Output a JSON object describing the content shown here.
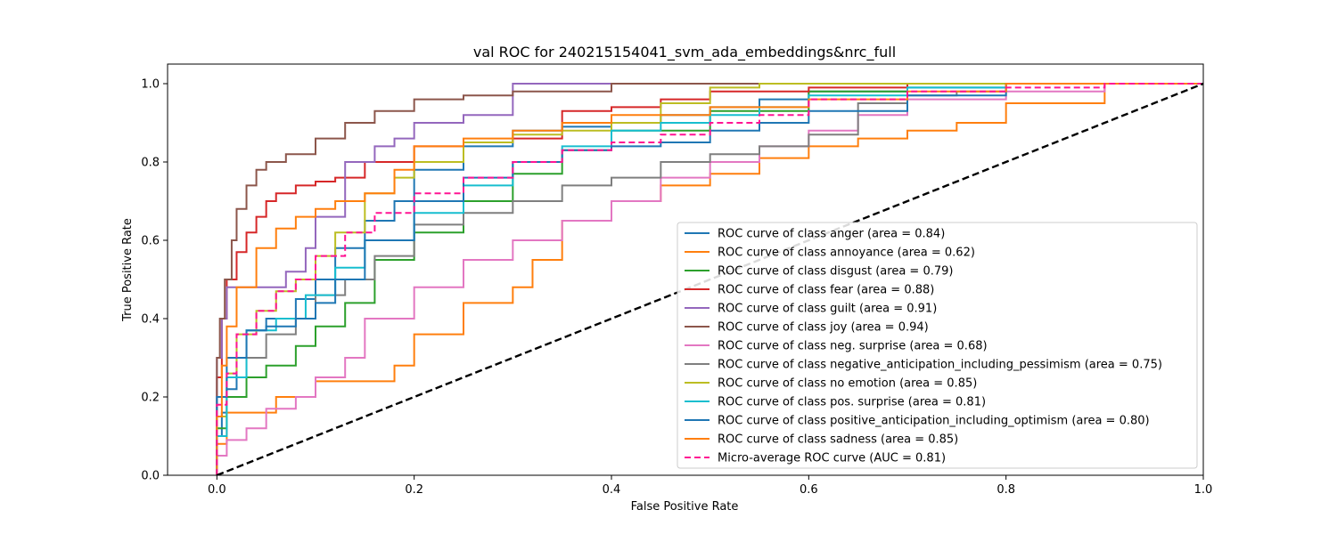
{
  "chart_data": {
    "type": "line",
    "title": "val ROC for 240215154041_svm_ada_embeddings&nrc_full",
    "xlabel": "False Positive Rate",
    "ylabel": "True Positive Rate",
    "xlim": [
      -0.05,
      1.0
    ],
    "ylim": [
      0.0,
      1.05
    ],
    "x_ticks": [
      0.0,
      0.2,
      0.4,
      0.6,
      0.8,
      1.0
    ],
    "x_tick_labels": [
      "0.0",
      "0.2",
      "0.4",
      "0.6",
      "0.8",
      "1.0"
    ],
    "y_ticks": [
      0.0,
      0.2,
      0.4,
      0.6,
      0.8,
      1.0
    ],
    "y_tick_labels": [
      "0.0",
      "0.2",
      "0.4",
      "0.6",
      "0.8",
      "1.0"
    ],
    "grid": false,
    "legend_position": "lower-right",
    "series": [
      {
        "name": "ROC curve of class anger (area = 0.84)",
        "color": "#1f77b4",
        "style": "solid",
        "x": [
          0,
          0.005,
          0.01,
          0.02,
          0.03,
          0.05,
          0.08,
          0.1,
          0.12,
          0.15,
          0.18,
          0.2,
          0.25,
          0.3,
          0.35,
          0.4,
          0.45,
          0.5,
          0.55,
          0.6,
          0.7,
          0.8,
          0.9,
          1.0
        ],
        "y": [
          0,
          0.1,
          0.16,
          0.22,
          0.3,
          0.37,
          0.4,
          0.45,
          0.5,
          0.58,
          0.65,
          0.7,
          0.78,
          0.84,
          0.88,
          0.89,
          0.9,
          0.92,
          0.94,
          0.96,
          0.98,
          0.99,
          1.0,
          1.0
        ]
      },
      {
        "name": "ROC curve of class annoyance (area = 0.62)",
        "color": "#ff7f0e",
        "style": "solid",
        "x": [
          0,
          0.01,
          0.03,
          0.06,
          0.1,
          0.15,
          0.18,
          0.2,
          0.25,
          0.3,
          0.32,
          0.35,
          0.4,
          0.45,
          0.5,
          0.55,
          0.6,
          0.65,
          0.7,
          0.75,
          0.8,
          0.9,
          1.0
        ],
        "y": [
          0,
          0.08,
          0.16,
          0.16,
          0.2,
          0.24,
          0.24,
          0.28,
          0.36,
          0.44,
          0.48,
          0.55,
          0.65,
          0.7,
          0.74,
          0.77,
          0.81,
          0.84,
          0.86,
          0.88,
          0.9,
          0.95,
          1.0
        ]
      },
      {
        "name": "ROC curve of class disgust (area = 0.79)",
        "color": "#2ca02c",
        "style": "solid",
        "x": [
          0,
          0.01,
          0.03,
          0.05,
          0.08,
          0.1,
          0.13,
          0.16,
          0.2,
          0.25,
          0.3,
          0.35,
          0.4,
          0.5,
          0.6,
          0.7,
          0.8,
          1.0
        ],
        "y": [
          0,
          0.12,
          0.2,
          0.25,
          0.28,
          0.33,
          0.38,
          0.44,
          0.55,
          0.62,
          0.7,
          0.77,
          0.83,
          0.88,
          0.93,
          0.98,
          1.0,
          1.0
        ]
      },
      {
        "name": "ROC curve of class fear (area = 0.88)",
        "color": "#d62728",
        "style": "solid",
        "x": [
          0,
          0.005,
          0.01,
          0.02,
          0.03,
          0.04,
          0.05,
          0.06,
          0.08,
          0.1,
          0.12,
          0.15,
          0.2,
          0.25,
          0.3,
          0.35,
          0.4,
          0.45,
          0.5,
          0.6,
          0.7,
          0.8,
          1.0
        ],
        "y": [
          0,
          0.25,
          0.4,
          0.5,
          0.57,
          0.62,
          0.66,
          0.7,
          0.72,
          0.74,
          0.75,
          0.76,
          0.8,
          0.84,
          0.85,
          0.86,
          0.93,
          0.94,
          0.96,
          0.98,
          0.99,
          1.0,
          1.0
        ]
      },
      {
        "name": "ROC curve of class guilt (area = 0.91)",
        "color": "#9467bd",
        "style": "solid",
        "x": [
          0,
          0.005,
          0.01,
          0.02,
          0.04,
          0.07,
          0.09,
          0.1,
          0.13,
          0.16,
          0.18,
          0.2,
          0.25,
          0.3,
          0.35,
          0.4,
          0.6,
          1.0
        ],
        "y": [
          0,
          0.3,
          0.4,
          0.48,
          0.48,
          0.48,
          0.52,
          0.58,
          0.66,
          0.8,
          0.84,
          0.86,
          0.9,
          0.92,
          1.0,
          1.0,
          1.0,
          1.0
        ]
      },
      {
        "name": "ROC curve of class joy (area = 0.94)",
        "color": "#8c564b",
        "style": "solid",
        "x": [
          0,
          0.003,
          0.008,
          0.015,
          0.02,
          0.03,
          0.04,
          0.05,
          0.07,
          0.1,
          0.13,
          0.16,
          0.2,
          0.25,
          0.3,
          0.4,
          0.5,
          0.6,
          1.0
        ],
        "y": [
          0,
          0.3,
          0.4,
          0.5,
          0.6,
          0.68,
          0.74,
          0.78,
          0.8,
          0.82,
          0.86,
          0.9,
          0.93,
          0.96,
          0.97,
          0.98,
          1.0,
          1.0,
          1.0
        ]
      },
      {
        "name": "ROC curve of class neg. surprise (area = 0.68)",
        "color": "#e377c2",
        "style": "solid",
        "x": [
          0,
          0.01,
          0.03,
          0.05,
          0.08,
          0.1,
          0.13,
          0.15,
          0.2,
          0.25,
          0.3,
          0.35,
          0.4,
          0.45,
          0.5,
          0.55,
          0.6,
          0.65,
          0.7,
          0.8,
          0.9,
          1.0
        ],
        "y": [
          0,
          0.05,
          0.09,
          0.12,
          0.17,
          0.2,
          0.25,
          0.3,
          0.4,
          0.48,
          0.55,
          0.6,
          0.65,
          0.7,
          0.76,
          0.8,
          0.84,
          0.88,
          0.92,
          0.96,
          0.98,
          1.0
        ]
      },
      {
        "name": "ROC curve of class negative_anticipation_including_pessimism (area = 0.75)",
        "color": "#7f7f7f",
        "style": "solid",
        "x": [
          0,
          0.01,
          0.03,
          0.05,
          0.08,
          0.1,
          0.13,
          0.16,
          0.2,
          0.25,
          0.3,
          0.35,
          0.4,
          0.45,
          0.5,
          0.55,
          0.6,
          0.65,
          0.7,
          0.75,
          0.8,
          0.9,
          1.0
        ],
        "y": [
          0,
          0.15,
          0.25,
          0.3,
          0.36,
          0.4,
          0.46,
          0.5,
          0.56,
          0.64,
          0.67,
          0.7,
          0.74,
          0.76,
          0.8,
          0.82,
          0.84,
          0.87,
          0.95,
          0.97,
          0.98,
          1.0,
          1.0
        ]
      },
      {
        "name": "ROC curve of class no emotion (area = 0.85)",
        "color": "#bcbd22",
        "style": "solid",
        "x": [
          0,
          0.01,
          0.02,
          0.04,
          0.06,
          0.08,
          0.1,
          0.12,
          0.15,
          0.18,
          0.2,
          0.25,
          0.3,
          0.35,
          0.4,
          0.45,
          0.5,
          0.55,
          0.6,
          0.7,
          0.8,
          1.0
        ],
        "y": [
          0,
          0.15,
          0.26,
          0.36,
          0.42,
          0.47,
          0.5,
          0.56,
          0.62,
          0.72,
          0.76,
          0.8,
          0.85,
          0.87,
          0.88,
          0.9,
          0.95,
          0.99,
          1.0,
          1.0,
          1.0,
          1.0
        ]
      },
      {
        "name": "ROC curve of class pos. surprise (area = 0.81)",
        "color": "#17becf",
        "style": "solid",
        "x": [
          0,
          0.01,
          0.03,
          0.06,
          0.09,
          0.12,
          0.15,
          0.2,
          0.25,
          0.3,
          0.35,
          0.4,
          0.45,
          0.5,
          0.55,
          0.6,
          0.7,
          0.8,
          1.0
        ],
        "y": [
          0,
          0.1,
          0.25,
          0.37,
          0.4,
          0.46,
          0.53,
          0.6,
          0.67,
          0.74,
          0.8,
          0.84,
          0.88,
          0.9,
          0.92,
          0.94,
          0.97,
          0.99,
          1.0
        ]
      },
      {
        "name": "ROC curve of class positive_anticipation_including_optimism (area = 0.80)",
        "color": "#1f77b4",
        "style": "solid",
        "x": [
          0,
          0.01,
          0.03,
          0.05,
          0.08,
          0.1,
          0.12,
          0.15,
          0.2,
          0.25,
          0.3,
          0.35,
          0.4,
          0.45,
          0.5,
          0.55,
          0.6,
          0.7,
          0.8,
          1.0
        ],
        "y": [
          0,
          0.2,
          0.3,
          0.37,
          0.38,
          0.4,
          0.44,
          0.5,
          0.6,
          0.7,
          0.76,
          0.8,
          0.83,
          0.84,
          0.85,
          0.88,
          0.9,
          0.93,
          0.97,
          1.0
        ]
      },
      {
        "name": "ROC curve of class sadness (area = 0.85)",
        "color": "#ff7f0e",
        "style": "solid",
        "x": [
          0,
          0.005,
          0.01,
          0.02,
          0.04,
          0.06,
          0.08,
          0.1,
          0.12,
          0.15,
          0.18,
          0.2,
          0.25,
          0.3,
          0.35,
          0.4,
          0.5,
          0.6,
          0.7,
          0.8,
          1.0
        ],
        "y": [
          0,
          0.15,
          0.28,
          0.38,
          0.48,
          0.58,
          0.63,
          0.66,
          0.68,
          0.7,
          0.72,
          0.78,
          0.84,
          0.86,
          0.88,
          0.9,
          0.92,
          0.94,
          0.96,
          0.98,
          1.0
        ]
      },
      {
        "name": "Micro-average ROC curve (AUC = 0.81)",
        "color": "#ff1493",
        "style": "dashed",
        "x": [
          0,
          0.01,
          0.02,
          0.04,
          0.06,
          0.08,
          0.1,
          0.13,
          0.16,
          0.2,
          0.25,
          0.3,
          0.35,
          0.4,
          0.45,
          0.5,
          0.55,
          0.6,
          0.7,
          0.8,
          0.9,
          1.0
        ],
        "y": [
          0,
          0.18,
          0.26,
          0.36,
          0.42,
          0.47,
          0.5,
          0.56,
          0.62,
          0.67,
          0.72,
          0.76,
          0.8,
          0.83,
          0.85,
          0.87,
          0.9,
          0.92,
          0.96,
          0.98,
          0.99,
          1.0
        ]
      },
      {
        "name": "",
        "color": "#000000",
        "style": "dashed-bold",
        "x": [
          0,
          1
        ],
        "y": [
          0,
          1
        ]
      }
    ]
  }
}
